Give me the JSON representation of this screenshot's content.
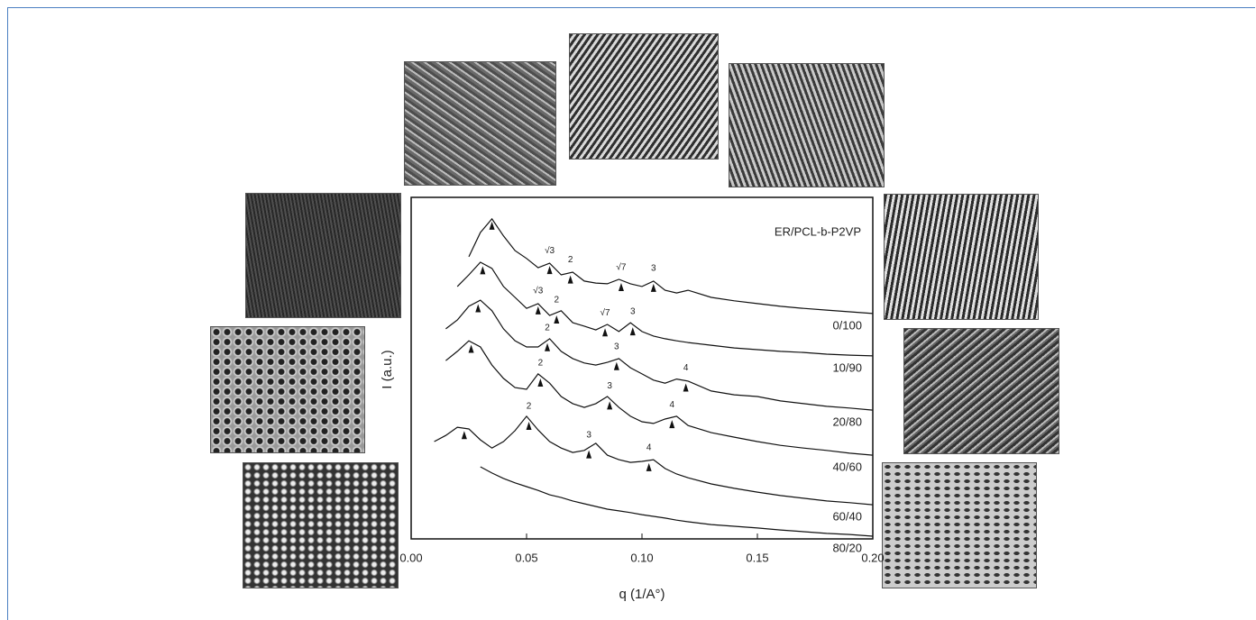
{
  "chart_data": {
    "type": "line",
    "legend_title": "ER/PCL-b-P2VP",
    "xlabel": "q (1/A°)",
    "ylabel": "I (a.u.)",
    "xlim": [
      0,
      0.2
    ],
    "ylim": [
      0,
      100
    ],
    "xticks": [
      {
        "value": 0,
        "label": "0.00"
      },
      0.05,
      {
        "value": 0.1,
        "label": "0.10"
      },
      0.15,
      {
        "value": 0.2,
        "label": "0.20"
      }
    ],
    "x": [
      0.01,
      0.015,
      0.02,
      0.025,
      0.03,
      0.035,
      0.04,
      0.045,
      0.05,
      0.055,
      0.06,
      0.065,
      0.07,
      0.075,
      0.08,
      0.085,
      0.09,
      0.095,
      0.1,
      0.105,
      0.11,
      0.115,
      0.12,
      0.13,
      0.14,
      0.15,
      0.16,
      0.17,
      0.18,
      0.19,
      0.2
    ],
    "series": [
      {
        "name": "0/100",
        "color": "#111111",
        "values": [
          null,
          null,
          null,
          82.6,
          89.7,
          93.7,
          88.7,
          84.4,
          82.1,
          79.4,
          80.7,
          77.3,
          78.1,
          75.5,
          74.9,
          74.7,
          76.0,
          74.7,
          73.9,
          75.5,
          72.8,
          72.0,
          72.8,
          70.7,
          69.7,
          68.9,
          68.1,
          67.5,
          67.0,
          66.5,
          66.0
        ],
        "peaks": [
          {
            "x": 0.035
          },
          {
            "x": 0.06,
            "label": "√3"
          },
          {
            "x": 0.069,
            "label": "2"
          },
          {
            "x": 0.091,
            "label": "√7"
          },
          {
            "x": 0.105,
            "label": "3"
          }
        ]
      },
      {
        "name": "10/90",
        "color": "#111111",
        "values": [
          null,
          null,
          73.9,
          77.3,
          81.0,
          79.2,
          73.9,
          70.7,
          67.5,
          68.9,
          65.4,
          66.8,
          63.3,
          62.3,
          61.2,
          62.8,
          60.7,
          63.3,
          60.7,
          59.4,
          58.6,
          58.0,
          57.5,
          56.7,
          55.9,
          55.4,
          54.9,
          54.6,
          54.1,
          53.8,
          53.6
        ],
        "peaks": [
          {
            "x": 0.031
          },
          {
            "x": 0.055,
            "label": "√3"
          },
          {
            "x": 0.063,
            "label": "2"
          },
          {
            "x": 0.084,
            "label": "√7"
          },
          {
            "x": 0.096,
            "label": "3"
          }
        ]
      },
      {
        "name": "20/80",
        "color": "#111111",
        "values": [
          null,
          61.5,
          64.1,
          68.1,
          69.9,
          66.8,
          61.5,
          58.0,
          56.2,
          56.2,
          58.6,
          54.9,
          52.8,
          51.5,
          50.9,
          51.7,
          52.8,
          50.1,
          48.3,
          46.5,
          45.6,
          46.8,
          46.2,
          43.3,
          42.2,
          41.7,
          40.4,
          39.6,
          38.8,
          38.3,
          37.7
        ],
        "peaks": [
          {
            "x": 0.029
          },
          {
            "x": 0.059,
            "label": "2"
          },
          {
            "x": 0.089,
            "label": "3"
          },
          {
            "x": 0.119,
            "label": "4"
          }
        ]
      },
      {
        "name": "40/60",
        "color": "#111111",
        "values": [
          null,
          52.2,
          54.9,
          58.0,
          56.2,
          50.9,
          47.0,
          44.3,
          43.8,
          48.3,
          45.6,
          41.7,
          39.6,
          38.5,
          39.6,
          41.7,
          38.5,
          35.9,
          34.3,
          33.8,
          35.1,
          35.9,
          33.2,
          31.1,
          29.8,
          28.5,
          27.4,
          26.6,
          25.9,
          25.1,
          24.5
        ],
        "peaks": [
          {
            "x": 0.026
          },
          {
            "x": 0.056,
            "label": "2"
          },
          {
            "x": 0.086,
            "label": "3"
          },
          {
            "x": 0.113,
            "label": "4"
          }
        ]
      },
      {
        "name": "60/40",
        "color": "#111111",
        "values": [
          28.5,
          30.3,
          32.7,
          32.2,
          29.0,
          26.6,
          28.5,
          31.7,
          35.9,
          31.9,
          28.5,
          26.6,
          25.3,
          25.9,
          28.0,
          24.5,
          23.2,
          22.4,
          22.7,
          23.2,
          20.6,
          19.0,
          17.9,
          16.1,
          14.8,
          13.7,
          12.7,
          11.9,
          11.1,
          10.6,
          10.0
        ],
        "peaks": [
          {
            "x": 0.023
          },
          {
            "x": 0.051,
            "label": "2"
          },
          {
            "x": 0.077,
            "label": "3"
          },
          {
            "x": 0.103,
            "label": "4"
          }
        ]
      },
      {
        "name": "80/20",
        "color": "#111111",
        "values": [
          null,
          null,
          null,
          null,
          21.1,
          19.3,
          17.7,
          16.4,
          15.3,
          14.2,
          12.9,
          12.1,
          11.1,
          10.3,
          9.5,
          8.7,
          8.2,
          7.7,
          7.1,
          6.6,
          6.1,
          5.5,
          5.0,
          4.2,
          3.7,
          3.2,
          2.6,
          2.1,
          1.6,
          1.3,
          0.8
        ]
      }
    ]
  }
}
